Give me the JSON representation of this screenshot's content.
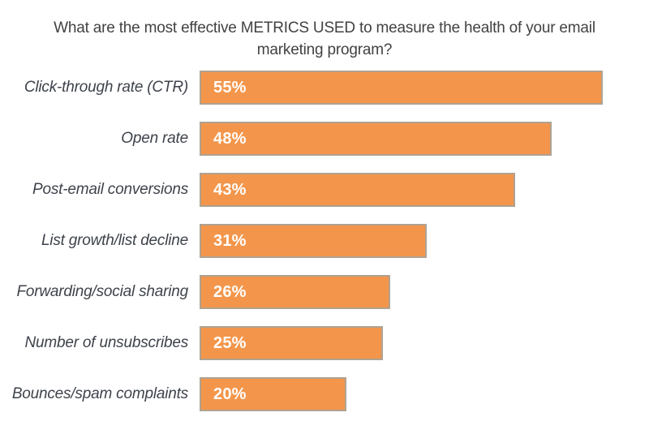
{
  "page": {
    "background": "#ffffff"
  },
  "chart_data": {
    "type": "bar",
    "orientation": "horizontal",
    "title": "What are the most effective METRICS USED to measure the health of your email\nmarketing program?",
    "categories": [
      "Click-through rate (CTR)",
      "Open rate",
      "Post-email conversions",
      "List growth/list decline",
      "Forwarding/social sharing",
      "Number of unsubscribes",
      "Bounces/spam complaints"
    ],
    "values": [
      55,
      48,
      43,
      31,
      26,
      25,
      20
    ],
    "value_labels": [
      "55%",
      "48%",
      "43%",
      "31%",
      "26%",
      "25%",
      "20%"
    ],
    "value_suffix": "%",
    "xlim": [
      0,
      60
    ],
    "xlabel": "",
    "ylabel": "",
    "grid": false,
    "legend": "none",
    "axes_hidden": true,
    "bar_color": "#F3964B",
    "bar_border_color": "#AFA291",
    "value_text_color": "#FFFFFF",
    "category_label_color": "#3E434B",
    "title_color": "#424242"
  }
}
